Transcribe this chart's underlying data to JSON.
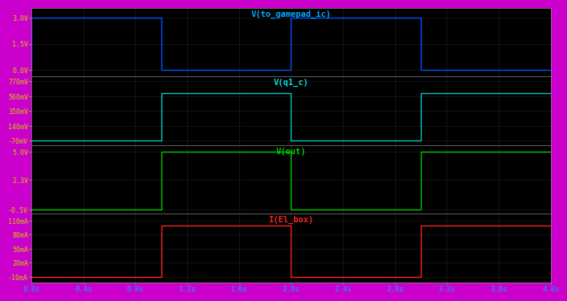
{
  "background_color": "#000000",
  "border_color": "#cc00cc",
  "subplot_titles": [
    "V(to_gamepad_ic)",
    "V(q1_c)",
    "V(out)",
    "I(El_box)"
  ],
  "title_colors": [
    "#00aaff",
    "#00dddd",
    "#00cc00",
    "#ff2222"
  ],
  "signal_colors": [
    "#0055ff",
    "#00cccc",
    "#00cc00",
    "#ff2222"
  ],
  "ytick_color": "#cccc00",
  "xtick_color": "#00aaff",
  "grid_color": "#222222",
  "spine_color": "#888888",
  "x_ticks": [
    0.0,
    0.4,
    0.8,
    1.2,
    1.6,
    2.0,
    2.4,
    2.8,
    3.2,
    3.6,
    4.0
  ],
  "x_labels": [
    "0.0s",
    "0.4s",
    "0.8s",
    "1.2s",
    "1.6s",
    "2.0s",
    "2.4s",
    "2.8s",
    "3.2s",
    "3.6s",
    "4.0s"
  ],
  "xlim": [
    0.0,
    4.0
  ],
  "plots": [
    {
      "name": "V(to_gamepad_ic)",
      "ylim": [
        -0.35,
        3.55
      ],
      "yticks": [
        0.0,
        1.5,
        3.0
      ],
      "ytick_labels": [
        "0.0V",
        "1.5V",
        "3.0V"
      ],
      "x_pts": [
        0.0,
        0.0,
        1.0,
        1.0,
        2.0,
        2.0,
        3.0,
        3.0,
        4.0
      ],
      "y_pts": [
        0.0,
        3.0,
        3.0,
        0.0,
        0.0,
        3.0,
        3.0,
        0.0,
        0.0
      ]
    },
    {
      "name": "V(q1_c)",
      "ylim": [
        -0.13,
        0.84
      ],
      "yticks": [
        -0.07,
        0.14,
        0.35,
        0.56,
        0.77
      ],
      "ytick_labels": [
        "-70mV",
        "140mV",
        "350mV",
        "560mV",
        "770mV"
      ],
      "x_pts": [
        0.0,
        0.0,
        1.0,
        1.0,
        2.0,
        2.0,
        3.0,
        3.0,
        4.0
      ],
      "y_pts": [
        -0.07,
        -0.07,
        -0.07,
        0.6,
        0.6,
        -0.07,
        -0.07,
        0.6,
        0.6
      ]
    },
    {
      "name": "V(out)",
      "ylim": [
        -0.9,
        5.6
      ],
      "yticks": [
        -0.5,
        2.3,
        5.0
      ],
      "ytick_labels": [
        "-0.5V",
        "2.3V",
        "5.0V"
      ],
      "x_pts": [
        0.0,
        0.0,
        1.0,
        1.0,
        2.0,
        2.0,
        3.0,
        3.0,
        4.0
      ],
      "y_pts": [
        -0.5,
        -0.5,
        -0.5,
        5.0,
        5.0,
        -0.5,
        -0.5,
        5.0,
        5.0
      ]
    },
    {
      "name": "I(El_box)",
      "ylim": [
        -0.022,
        0.125
      ],
      "yticks": [
        -0.01,
        0.02,
        0.05,
        0.08,
        0.11
      ],
      "ytick_labels": [
        "-10mA",
        "20mA",
        "50mA",
        "80mA",
        "110mA"
      ],
      "x_pts": [
        0.0,
        0.0,
        1.0,
        1.0,
        2.0,
        2.0,
        3.0,
        3.0,
        4.0
      ],
      "y_pts": [
        -0.01,
        -0.01,
        -0.01,
        0.1,
        0.1,
        -0.01,
        -0.01,
        0.1,
        0.1
      ]
    }
  ]
}
